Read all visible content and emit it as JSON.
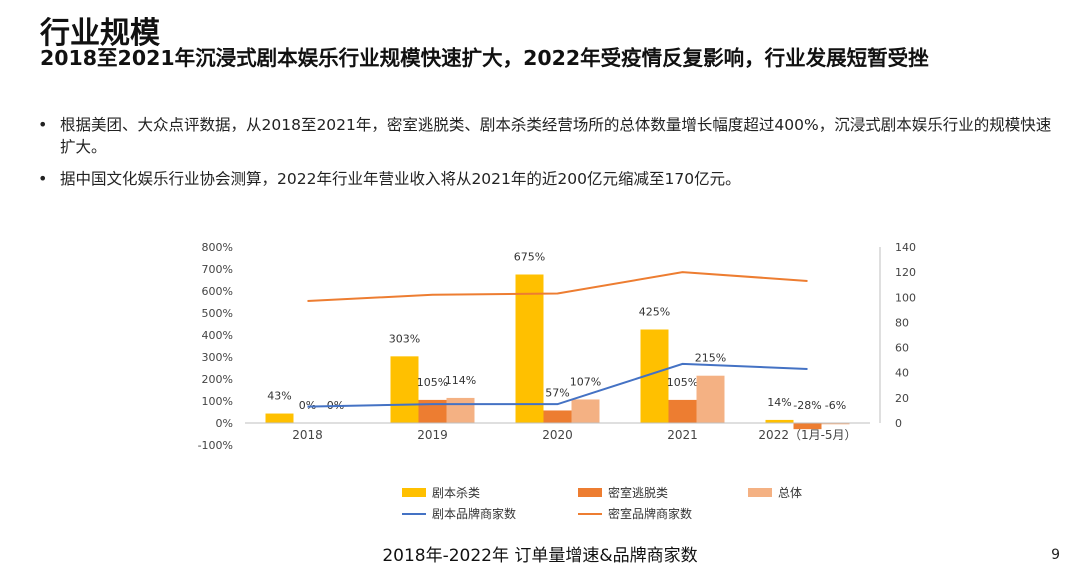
{
  "slide": {
    "title": "行业规模",
    "subtitle": "2018至2021年沉浸式剧本娱乐行业规模快速扩大，2022年受疫情反复影响，行业发展短暂受挫",
    "bullets": [
      "根据美团、大众点评数据，从2018至2021年，密室逃脱类、剧本杀类经营场所的总体数量增长幅度超过400%，沉浸式剧本娱乐行业的规模快速扩大。",
      "据中国文化娱乐行业协会测算，2022年行业年营业收入将从2021年的近200亿元缩减至170亿元。"
    ],
    "caption": "2018年-2022年 订单量增速&品牌商家数",
    "page_number": "9"
  },
  "chart_data": {
    "type": "bar",
    "categories": [
      "2018",
      "2019",
      "2020",
      "2021",
      "2022（1月-5月）"
    ],
    "y_left": {
      "min": -100,
      "max": 800,
      "step": 100,
      "suffix": "%"
    },
    "y_right": {
      "min": 0,
      "max": 140,
      "step": 20
    },
    "bar_series": [
      {
        "name": "剧本杀类",
        "color": "#FFC000",
        "values": [
          43,
          303,
          675,
          425,
          14
        ],
        "labels": [
          "43%",
          "303%",
          "675%",
          "425%",
          "14%"
        ]
      },
      {
        "name": "密室逃脱类",
        "color": "#ED7D31",
        "values": [
          0,
          105,
          57,
          105,
          -28
        ],
        "labels": [
          "0%",
          "105%",
          "57%",
          "105%",
          "-28%"
        ]
      },
      {
        "name": "总体",
        "color": "#F4B183",
        "values": [
          0,
          114,
          107,
          215,
          -6
        ],
        "labels": [
          "0%",
          "114%",
          "107%",
          "215%",
          "-6%"
        ]
      }
    ],
    "line_series": [
      {
        "name": "剧本品牌商家数",
        "color": "#4472C4",
        "axis": "right",
        "values": [
          13,
          15,
          15,
          47,
          43
        ]
      },
      {
        "name": "密室品牌商家数",
        "color": "#ED7D31",
        "axis": "right",
        "values": [
          97,
          102,
          103,
          120,
          113
        ]
      }
    ],
    "legend": {
      "position": "bottom"
    },
    "grid": false
  }
}
